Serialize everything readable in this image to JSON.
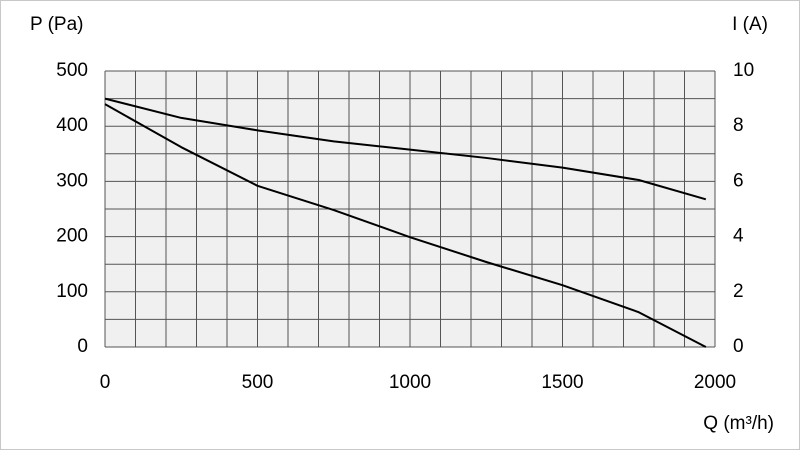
{
  "chart_data": {
    "type": "line",
    "y_label": "P (Pa)",
    "y2_label": "I (A)",
    "x_label": "Q (m³/h)",
    "x": [
      0,
      250,
      500,
      750,
      1000,
      1250,
      1500,
      1750,
      1970
    ],
    "series": [
      {
        "color": "#000000",
        "values": [
          440,
          362,
          292,
          248,
          199,
          154,
          112,
          63,
          0
        ]
      },
      {
        "color": "#000000",
        "axis": "y2",
        "values": [
          9.0,
          8.3,
          7.85,
          7.45,
          7.15,
          6.85,
          6.5,
          6.05,
          5.35
        ]
      }
    ],
    "xlim": [
      0,
      2000
    ],
    "xticks": [
      0,
      500,
      1000,
      1500,
      2000
    ],
    "ylim": [
      0,
      500
    ],
    "yticks": [
      0,
      100,
      200,
      300,
      400,
      500
    ],
    "y2lim": [
      0,
      10
    ],
    "y2ticks": [
      0,
      2,
      4,
      6,
      8,
      10
    ],
    "xgrid": [
      0,
      100,
      200,
      300,
      400,
      500,
      600,
      700,
      800,
      900,
      1000,
      1100,
      1200,
      1300,
      1400,
      1500,
      1600,
      1700,
      1800,
      1900,
      2000
    ],
    "ygrid": [
      0,
      50,
      100,
      150,
      200,
      250,
      300,
      350,
      400,
      450,
      500
    ],
    "grid": true
  }
}
